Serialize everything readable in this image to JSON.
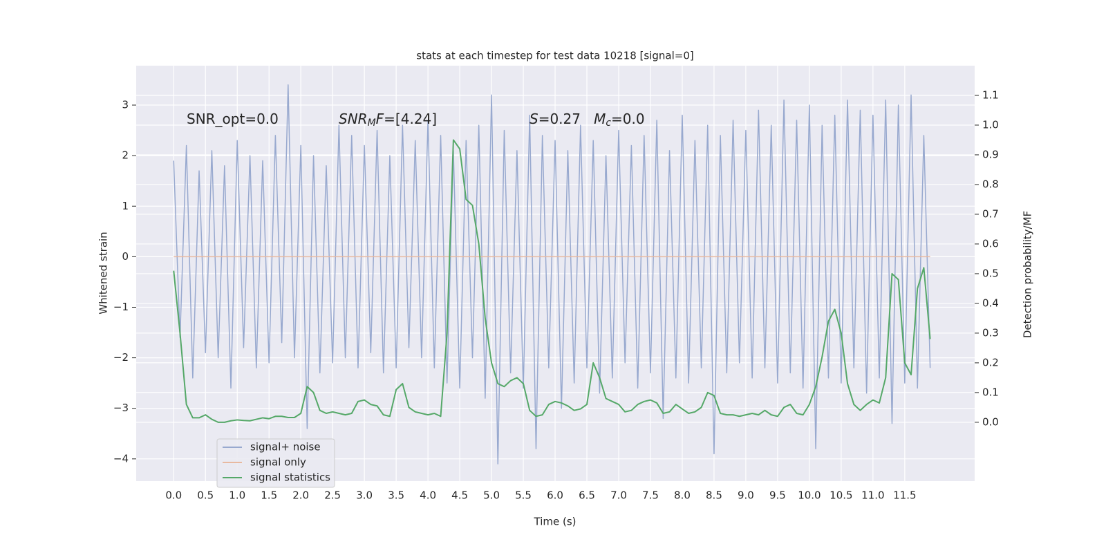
{
  "chart_data": {
    "type": "line",
    "title": "stats at each timestep for test data 10218 [signal=0]",
    "xlabel": "Time (s)",
    "ylabel": "Whitened strain",
    "y2label": "Detection probability/MF",
    "grid": true,
    "legend": "lower left",
    "xlim": [
      -0.59,
      12.6
    ],
    "ylim": [
      -4.44,
      3.78
    ],
    "y2lim": [
      -0.198,
      1.2
    ],
    "xticks": [
      {
        "value": 0,
        "label": "0.0"
      },
      {
        "value": 0.5,
        "label": "0.5"
      },
      {
        "value": 1,
        "label": "1.0"
      },
      {
        "value": 1.5,
        "label": "1.5"
      },
      {
        "value": 2,
        "label": "2.0"
      },
      {
        "value": 2.5,
        "label": "2.5"
      },
      {
        "value": 3,
        "label": "3.0"
      },
      {
        "value": 3.5,
        "label": "3.5"
      },
      {
        "value": 4,
        "label": "4.0"
      },
      {
        "value": 4.5,
        "label": "4.5"
      },
      {
        "value": 5,
        "label": "5.0"
      },
      {
        "value": 5.5,
        "label": "5.5"
      },
      {
        "value": 6,
        "label": "6.0"
      },
      {
        "value": 6.5,
        "label": "6.5"
      },
      {
        "value": 7,
        "label": "7.0"
      },
      {
        "value": 7.5,
        "label": "7.5"
      },
      {
        "value": 8,
        "label": "8.0"
      },
      {
        "value": 8.5,
        "label": "8.5"
      },
      {
        "value": 9,
        "label": "9.0"
      },
      {
        "value": 9.5,
        "label": "9.5"
      },
      {
        "value": 10,
        "label": "10.0"
      },
      {
        "value": 10.5,
        "label": "10.5"
      },
      {
        "value": 11,
        "label": "11.0"
      },
      {
        "value": 11.5,
        "label": "11.5"
      }
    ],
    "yticks": [
      {
        "value": -4,
        "label": "−4"
      },
      {
        "value": -3,
        "label": "−3"
      },
      {
        "value": -2,
        "label": "−2"
      },
      {
        "value": -1,
        "label": "−1"
      },
      0,
      1,
      2,
      3
    ],
    "y2ticks": [
      {
        "value": 0,
        "label": "0.0"
      },
      {
        "value": 0.1,
        "label": "0.1"
      },
      {
        "value": 0.2,
        "label": "0.2"
      },
      {
        "value": 0.3,
        "label": "0.3"
      },
      {
        "value": 0.4,
        "label": "0.4"
      },
      {
        "value": 0.5,
        "label": "0.5"
      },
      {
        "value": 0.6,
        "label": "0.6"
      },
      {
        "value": 0.7,
        "label": "0.7"
      },
      {
        "value": 0.8,
        "label": "0.8"
      },
      {
        "value": 0.9,
        "label": "0.9"
      },
      {
        "value": 1,
        "label": "1.0"
      },
      {
        "value": 1.1,
        "label": "1.1"
      }
    ],
    "annotations": [
      [
        {
          "text": "SNR_opt=0.0",
          "style": "normal"
        }
      ],
      [
        {
          "text": "SNR",
          "style": "italic"
        },
        {
          "text": "M",
          "style": "sub"
        },
        {
          "text": "F",
          "style": "italic"
        },
        {
          "text": "=[4.24]",
          "style": "normal"
        }
      ],
      [
        {
          "text": "S",
          "style": "italic"
        },
        {
          "text": "=0.27   ",
          "style": "normal"
        },
        {
          "text": "M",
          "style": "italic"
        },
        {
          "text": "c",
          "style": "sub"
        },
        {
          "text": "=0.0",
          "style": "normal"
        }
      ]
    ],
    "x": [
      0,
      0.1,
      0.2,
      0.3,
      0.4,
      0.5,
      0.6,
      0.7,
      0.8,
      0.9,
      1,
      1.1,
      1.2,
      1.3,
      1.4,
      1.5,
      1.6,
      1.7,
      1.8,
      1.9,
      2,
      2.1,
      2.2,
      2.3,
      2.4,
      2.5,
      2.6,
      2.7,
      2.8,
      2.9,
      3,
      3.1,
      3.2,
      3.3,
      3.4,
      3.5,
      3.6,
      3.7,
      3.8,
      3.9,
      4,
      4.1,
      4.2,
      4.3,
      4.4,
      4.5,
      4.6,
      4.7,
      4.8,
      4.9,
      5,
      5.1,
      5.2,
      5.3,
      5.4,
      5.5,
      5.6,
      5.7,
      5.8,
      5.9,
      6,
      6.1,
      6.2,
      6.3,
      6.4,
      6.5,
      6.6,
      6.7,
      6.8,
      6.9,
      7,
      7.1,
      7.2,
      7.3,
      7.4,
      7.5,
      7.6,
      7.7,
      7.8,
      7.9,
      8,
      8.1,
      8.2,
      8.3,
      8.4,
      8.5,
      8.6,
      8.7,
      8.8,
      8.9,
      9,
      9.1,
      9.2,
      9.3,
      9.4,
      9.5,
      9.6,
      9.7,
      9.8,
      9.9,
      10,
      10.1,
      10.2,
      10.3,
      10.4,
      10.5,
      10.6,
      10.7,
      10.8,
      10.9,
      11,
      11.1,
      11.2,
      11.3,
      11.4,
      11.5,
      11.6,
      11.7,
      11.8,
      11.9
    ],
    "series": [
      {
        "name": "signal+ noise",
        "color": "#98a9cf",
        "values": [
          1.9,
          -1.6,
          2.2,
          -2.4,
          1.7,
          -1.9,
          2.1,
          -2.0,
          1.8,
          -2.6,
          2.3,
          -1.8,
          2.0,
          -2.2,
          1.9,
          -2.1,
          2.4,
          -1.7,
          3.4,
          -2.0,
          2.2,
          -3.4,
          2.0,
          -2.3,
          1.8,
          -2.1,
          2.6,
          -2.0,
          2.4,
          -2.2,
          2.2,
          -1.9,
          2.5,
          -2.3,
          2.0,
          -2.2,
          2.6,
          -1.8,
          2.3,
          -2.0,
          2.7,
          -2.2,
          2.4,
          -2.5,
          2.1,
          -2.6,
          2.3,
          -2.0,
          2.6,
          -2.8,
          3.2,
          -4.1,
          2.5,
          -2.3,
          2.1,
          -2.6,
          2.8,
          -3.8,
          2.4,
          -2.2,
          2.3,
          -3.0,
          2.1,
          -2.5,
          2.6,
          -2.2,
          2.3,
          -2.7,
          2.0,
          -2.4,
          2.5,
          -2.1,
          2.2,
          -2.6,
          2.4,
          -2.3,
          2.7,
          -3.2,
          2.1,
          -2.4,
          2.8,
          -2.5,
          2.3,
          -2.2,
          2.6,
          -3.9,
          2.4,
          -2.3,
          2.7,
          -2.1,
          2.5,
          -2.4,
          2.9,
          -2.2,
          2.6,
          -2.5,
          3.1,
          -2.3,
          2.7,
          -2.6,
          3.0,
          -3.8,
          2.6,
          -2.4,
          2.8,
          -2.5,
          3.1,
          -2.2,
          2.9,
          -2.7,
          2.8,
          -2.4,
          3.1,
          -3.3,
          3.0,
          -2.5,
          3.2,
          -2.6,
          2.4,
          -2.2
        ]
      },
      {
        "name": "signal only",
        "color": "#e8b9a0",
        "values": [
          0,
          0,
          0,
          0,
          0,
          0,
          0,
          0,
          0,
          0,
          0,
          0,
          0,
          0,
          0,
          0,
          0,
          0,
          0,
          0,
          0,
          0,
          0,
          0,
          0,
          0,
          0,
          0,
          0,
          0,
          0,
          0,
          0,
          0,
          0,
          0,
          0,
          0,
          0,
          0,
          0,
          0,
          0,
          0,
          0,
          0,
          0,
          0,
          0,
          0,
          0,
          0,
          0,
          0,
          0,
          0,
          0,
          0,
          0,
          0,
          0,
          0,
          0,
          0,
          0,
          0,
          0,
          0,
          0,
          0,
          0,
          0,
          0,
          0,
          0,
          0,
          0,
          0,
          0,
          0,
          0,
          0,
          0,
          0,
          0,
          0,
          0,
          0,
          0,
          0,
          0,
          0,
          0,
          0,
          0,
          0,
          0,
          0,
          0,
          0,
          0,
          0,
          0,
          0,
          0,
          0,
          0,
          0,
          0,
          0,
          0,
          0,
          0,
          0,
          0,
          0,
          0,
          0,
          0,
          0
        ]
      },
      {
        "name": "signal statistics",
        "color": "#55a868",
        "axis": "y2",
        "values": [
          0.51,
          0.3,
          0.06,
          0.015,
          0.015,
          0.025,
          0.01,
          0,
          0,
          0.005,
          0.008,
          0.006,
          0.005,
          0.01,
          0.015,
          0.012,
          0.02,
          0.02,
          0.016,
          0.016,
          0.03,
          0.12,
          0.1,
          0.04,
          0.03,
          0.035,
          0.03,
          0.025,
          0.03,
          0.07,
          0.075,
          0.06,
          0.055,
          0.025,
          0.02,
          0.11,
          0.13,
          0.05,
          0.035,
          0.03,
          0.025,
          0.03,
          0.02,
          0.3,
          0.95,
          0.92,
          0.75,
          0.73,
          0.6,
          0.35,
          0.2,
          0.13,
          0.12,
          0.14,
          0.15,
          0.13,
          0.04,
          0.02,
          0.025,
          0.06,
          0.07,
          0.065,
          0.055,
          0.04,
          0.045,
          0.06,
          0.2,
          0.15,
          0.08,
          0.07,
          0.06,
          0.035,
          0.04,
          0.06,
          0.07,
          0.075,
          0.065,
          0.03,
          0.035,
          0.06,
          0.045,
          0.03,
          0.035,
          0.05,
          0.1,
          0.09,
          0.03,
          0.025,
          0.025,
          0.02,
          0.025,
          0.03,
          0.025,
          0.04,
          0.025,
          0.02,
          0.05,
          0.06,
          0.03,
          0.025,
          0.06,
          0.12,
          0.22,
          0.34,
          0.38,
          0.3,
          0.13,
          0.06,
          0.04,
          0.06,
          0.075,
          0.065,
          0.15,
          0.5,
          0.48,
          0.2,
          0.16,
          0.45,
          0.52,
          0.28
        ]
      }
    ]
  }
}
